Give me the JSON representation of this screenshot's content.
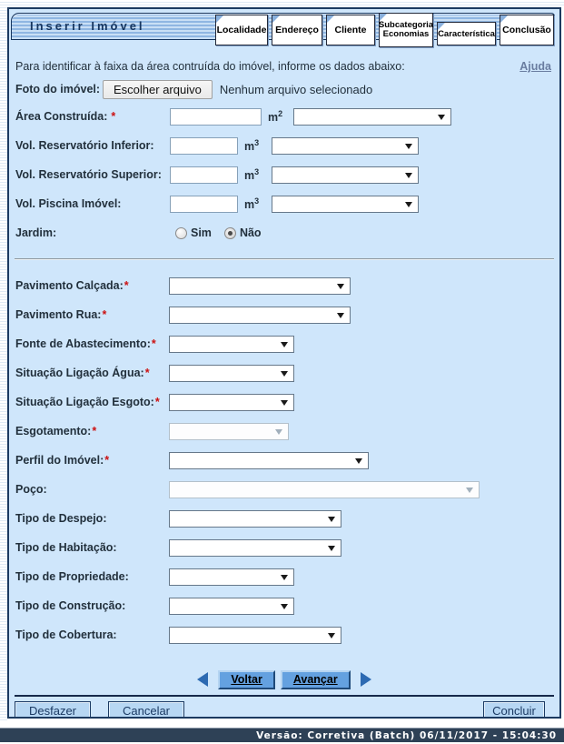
{
  "colors": {
    "panel_background": "#cfe6fb",
    "frame_navy": "#1c3a60",
    "title_text": "#16355e",
    "required_red": "#cc1111",
    "nav_button_blue": "#64a1e0",
    "action_button_blue": "#b7d7f3",
    "footer_bar": "#2e4156",
    "help_link": "#6a7da0",
    "tab_fold_blue": "#89b0dd"
  },
  "header": {
    "title": "Inserir Imóvel",
    "tabs": [
      {
        "label": "Localidade",
        "active": false
      },
      {
        "label": "Endereço",
        "active": false
      },
      {
        "label": "Cliente",
        "active": false
      },
      {
        "label": "Subcategoria Economias",
        "line1": "Subcategoria",
        "line2": "Economias",
        "active": false
      },
      {
        "label": "Característica",
        "active": true
      },
      {
        "label": "Conclusão",
        "active": false
      }
    ]
  },
  "intro": {
    "text": "Para identificar à faixa da área contruída do imóvel, informe os dados abaixo:",
    "help_link": "Ajuda"
  },
  "photo": {
    "label": "Foto do imóvel:",
    "button_label": "Escolher arquivo",
    "status": "Nenhum arquivo selecionado"
  },
  "ui": {
    "required_mark": "*"
  },
  "measure_rows": [
    {
      "label": "Área Construída:",
      "required": true,
      "unit_base": "m",
      "unit_exp": "2",
      "input_value": "",
      "select_value": ""
    },
    {
      "label": "Vol. Reservatório Inferior:",
      "required": false,
      "unit_base": "m",
      "unit_exp": "3",
      "input_value": "",
      "select_value": ""
    },
    {
      "label": "Vol. Reservatório Superior:",
      "required": false,
      "unit_base": "m",
      "unit_exp": "3",
      "input_value": "",
      "select_value": ""
    },
    {
      "label": "Vol. Piscina Imóvel:",
      "required": false,
      "unit_base": "m",
      "unit_exp": "3",
      "input_value": "",
      "select_value": ""
    }
  ],
  "jardim": {
    "label": "Jardim:",
    "options": [
      {
        "label": "Sim",
        "selected": false
      },
      {
        "label": "Não",
        "selected": true
      }
    ]
  },
  "select_rows": [
    {
      "label": "Pavimento Calçada:",
      "required": true,
      "disabled": false,
      "value": ""
    },
    {
      "label": "Pavimento Rua:",
      "required": true,
      "disabled": false,
      "value": ""
    },
    {
      "label": "Fonte de Abastecimento:",
      "required": true,
      "disabled": false,
      "value": ""
    },
    {
      "label": "Situação Ligação Água:",
      "required": true,
      "disabled": false,
      "value": ""
    },
    {
      "label": "Situação Ligação Esgoto:",
      "required": true,
      "disabled": false,
      "value": ""
    },
    {
      "label": "Esgotamento:",
      "required": true,
      "disabled": true,
      "value": ""
    },
    {
      "label": "Perfil do Imóvel:",
      "required": true,
      "disabled": false,
      "value": ""
    },
    {
      "label": "Poço:",
      "required": false,
      "disabled": true,
      "value": ""
    },
    {
      "label": "Tipo de Despejo:",
      "required": false,
      "disabled": false,
      "value": ""
    },
    {
      "label": "Tipo de Habitação:",
      "required": false,
      "disabled": false,
      "value": ""
    },
    {
      "label": "Tipo de Propriedade:",
      "required": false,
      "disabled": false,
      "value": ""
    },
    {
      "label": "Tipo de Construção:",
      "required": false,
      "disabled": false,
      "value": ""
    },
    {
      "label": "Tipo de Cobertura:",
      "required": false,
      "disabled": false,
      "value": ""
    }
  ],
  "navigation": {
    "back_label": "Voltar",
    "forward_label": "Avançar"
  },
  "actions": {
    "undo_label": "Desfazer",
    "cancel_label": "Cancelar",
    "finish_label": "Concluir"
  },
  "footer": {
    "version_text": "Versão: Corretiva (Batch) 06/11/2017 - 15:04:30"
  }
}
